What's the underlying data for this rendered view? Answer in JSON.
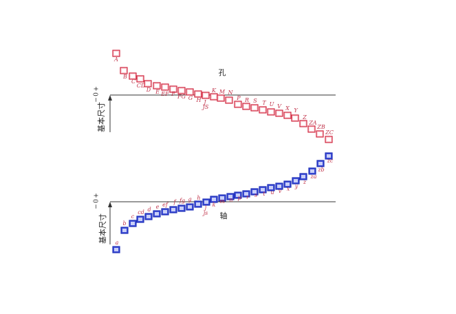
{
  "holes": {
    "title": "孔",
    "basic_size": "基本尺寸",
    "zero": "0",
    "plus": "+",
    "minus": "−",
    "labels": [
      "A",
      "B",
      "C",
      "CD",
      "D",
      "E",
      "EF",
      "F",
      "FG",
      "G",
      "H",
      "J",
      "K",
      "M",
      "N",
      "P",
      "R",
      "S",
      "T",
      "U",
      "V",
      "X",
      "Y",
      "Z",
      "ZA",
      "ZB",
      "ZC"
    ],
    "js_label": "JS"
  },
  "shafts": {
    "title": "轴",
    "basic_size": "基本尺寸",
    "zero": "0",
    "plus": "+",
    "minus": "−",
    "labels": [
      "a",
      "b",
      "c",
      "cd",
      "d",
      "e",
      "ef",
      "f",
      "fg",
      "g",
      "h",
      "j",
      "k",
      "m",
      "n",
      "p",
      "r",
      "s",
      "t",
      "u",
      "v",
      "x",
      "y",
      "z",
      "za",
      "zb",
      "zc"
    ],
    "js_label": "js"
  }
}
